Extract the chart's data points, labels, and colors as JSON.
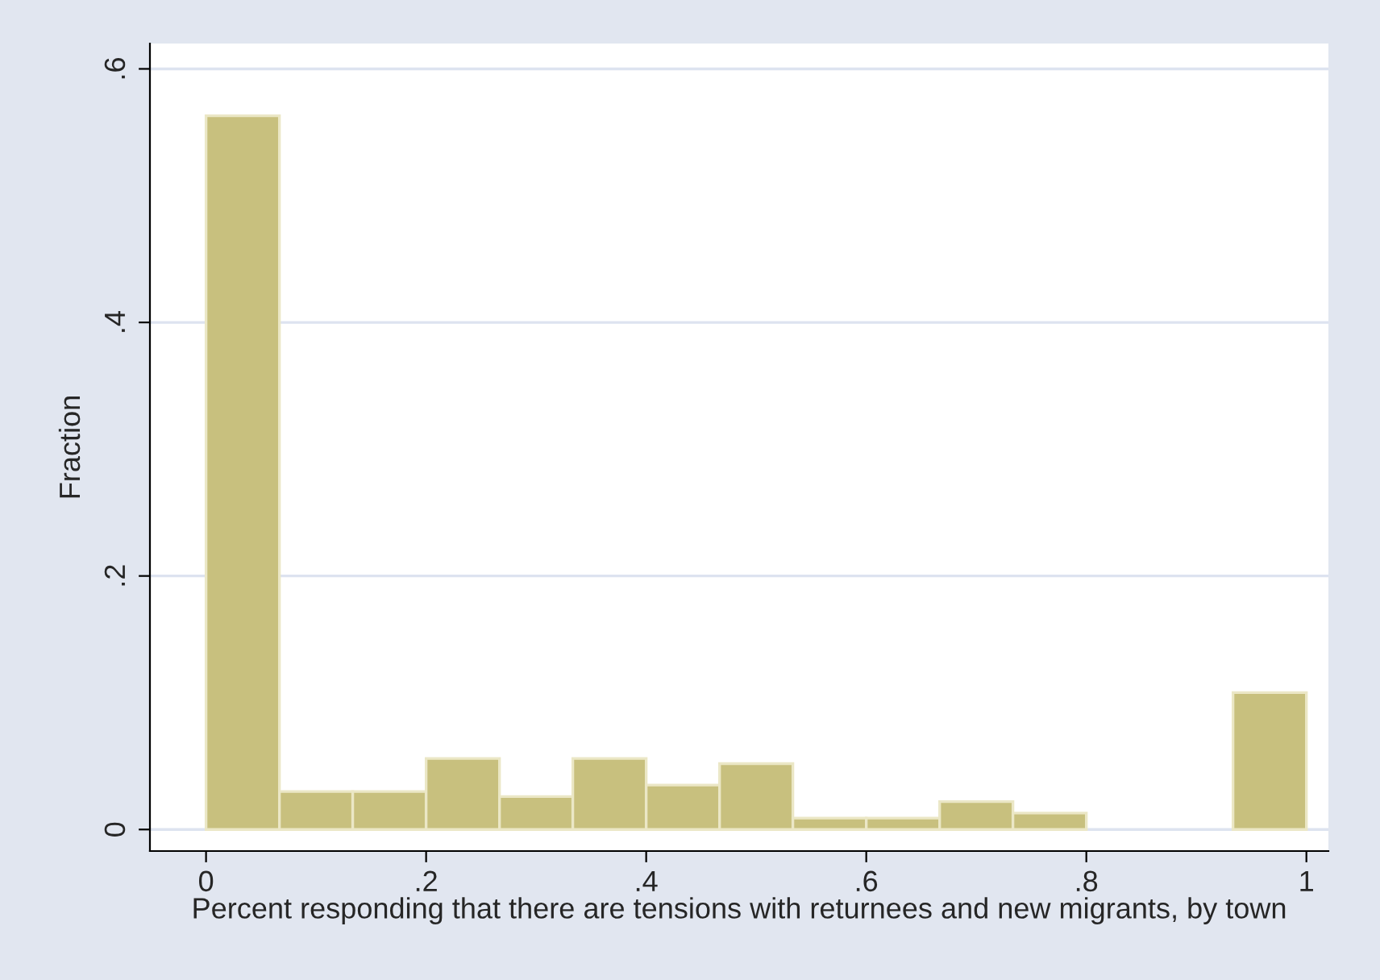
{
  "chart_data": {
    "type": "histogram",
    "xlabel": "Percent responding that there are tensions with returnees and new migrants, by town",
    "ylabel": "Fraction",
    "bins": [
      0,
      0.0667,
      0.1333,
      0.2,
      0.2667,
      0.3333,
      0.4,
      0.4667,
      0.5333,
      0.6,
      0.6667,
      0.7333,
      0.8,
      0.8667,
      0.9333,
      1
    ],
    "values": [
      0.563,
      0.03,
      0.03,
      0.056,
      0.026,
      0.056,
      0.035,
      0.052,
      0.009,
      0.009,
      0.022,
      0.013,
      0,
      0,
      0.108
    ],
    "color": "#c8c07e",
    "xlim": [
      -0.051,
      1.02
    ],
    "ylim": [
      -0.017,
      0.62
    ],
    "xticks": [
      0,
      {
        "value": 0.2,
        "label": ".2"
      },
      {
        "value": 0.4,
        "label": ".4"
      },
      {
        "value": 0.6,
        "label": ".6"
      },
      {
        "value": 0.8,
        "label": ".8"
      },
      1
    ],
    "yticks": [
      0,
      {
        "value": 0.2,
        "label": ".2"
      },
      {
        "value": 0.4,
        "label": ".4"
      },
      {
        "value": 0.6,
        "label": ".6"
      }
    ],
    "grid": "y"
  }
}
